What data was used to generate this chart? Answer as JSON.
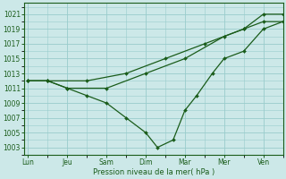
{
  "background_color": "#cce8e8",
  "grid_color": "#99cccc",
  "line_color": "#1a5c1a",
  "marker_color": "#1a5c1a",
  "xlabel": "Pression niveau de la mer( hPa )",
  "ylim": [
    1002,
    1022.5
  ],
  "yticks": [
    1003,
    1005,
    1007,
    1009,
    1011,
    1013,
    1015,
    1017,
    1019,
    1021
  ],
  "xtick_labels": [
    "Lun",
    "Jeu",
    "Sam",
    "Dim",
    "Mar",
    "Mer",
    "Ven"
  ],
  "xtick_positions": [
    0,
    1,
    2,
    3,
    4,
    5,
    6
  ],
  "xlim": [
    -0.1,
    6.5
  ],
  "series": [
    {
      "x": [
        0.0,
        0.5,
        1.0,
        1.5,
        2.0,
        2.5,
        3.0,
        3.3,
        3.7,
        4.0,
        4.3,
        4.7,
        5.0,
        5.5,
        6.0,
        6.5
      ],
      "y": [
        1012,
        1012,
        1011,
        1010,
        1009,
        1007,
        1005,
        1003,
        1004,
        1008,
        1010,
        1013,
        1015,
        1016,
        1019,
        1020
      ]
    },
    {
      "x": [
        0.0,
        0.5,
        1.0,
        2.0,
        3.0,
        4.0,
        5.0,
        5.5,
        6.0,
        6.5
      ],
      "y": [
        1012,
        1012,
        1011,
        1011,
        1013,
        1015,
        1018,
        1019,
        1021,
        1021
      ]
    },
    {
      "x": [
        0.0,
        0.5,
        1.5,
        2.5,
        3.5,
        4.5,
        5.5,
        6.0,
        6.5
      ],
      "y": [
        1012,
        1012,
        1012,
        1013,
        1015,
        1017,
        1019,
        1020,
        1020
      ]
    }
  ]
}
